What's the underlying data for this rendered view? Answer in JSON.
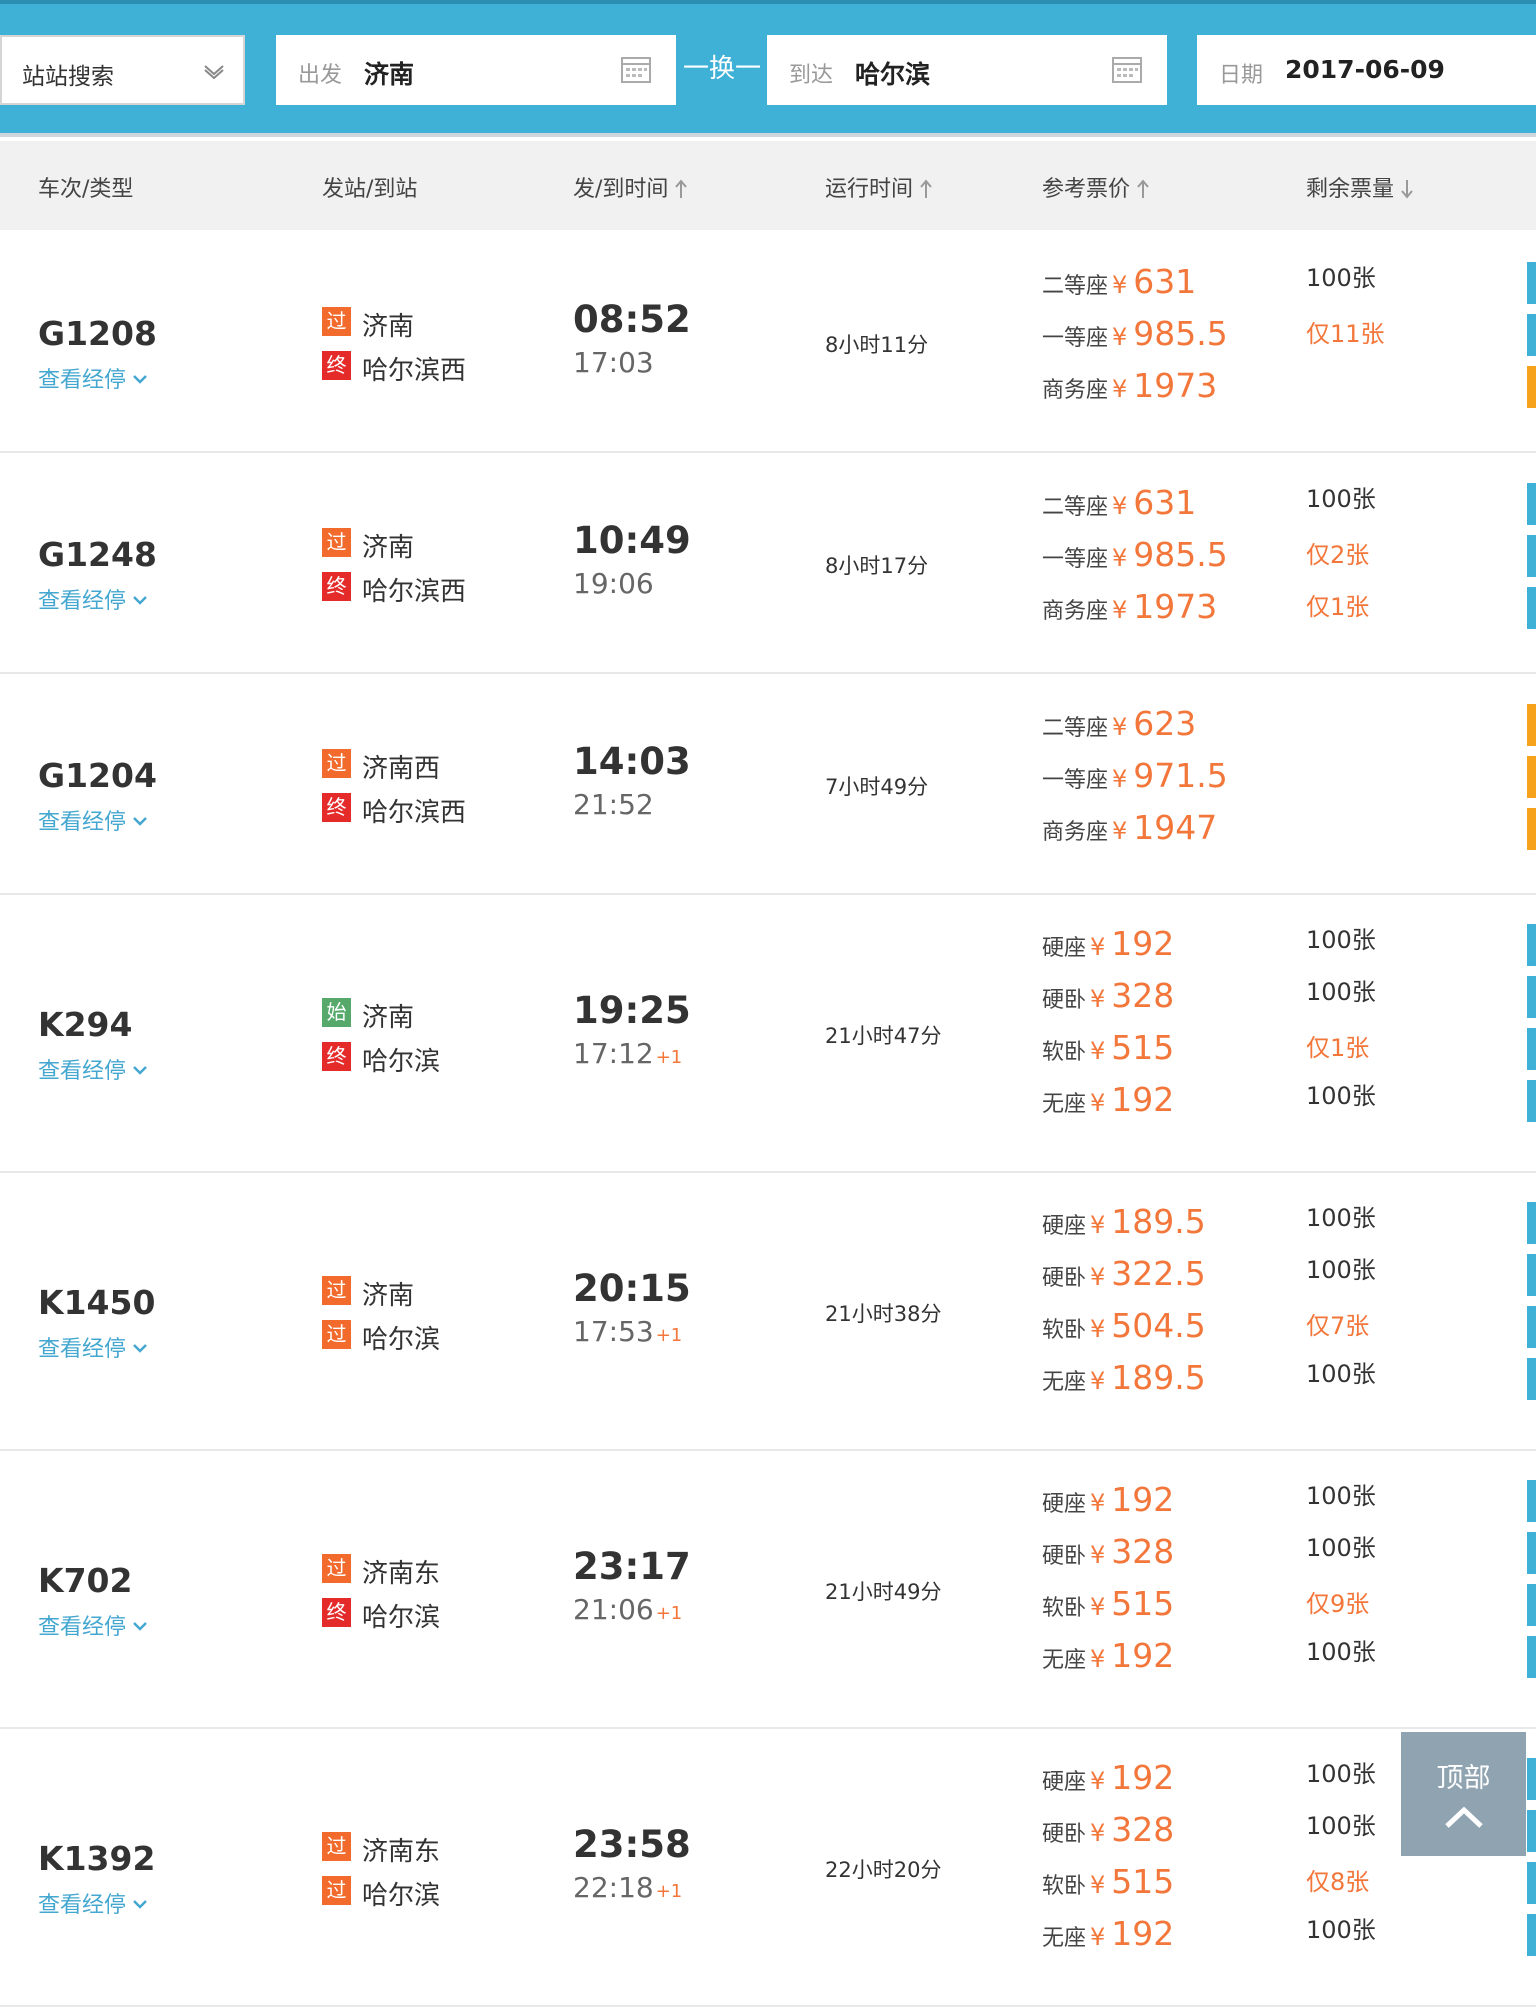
{
  "search": {
    "select_label": "站站搜索",
    "from_label": "出发",
    "from_value": "济南",
    "swap_label": "一换一",
    "to_label": "到达",
    "to_value": "哈尔滨",
    "date_label": "日期",
    "date_value": "2017-06-09"
  },
  "table_header": {
    "train": "车次/类型",
    "station": "发站/到站",
    "time": "发/到时间",
    "duration": "运行时间",
    "price": "参考票价",
    "remaining": "剩余票量"
  },
  "rows": [
    {
      "train_no": "G1208",
      "stops_link": "查看经停",
      "from_badge": "过",
      "from_station": "济南",
      "to_badge": "终",
      "to_station": "哈尔滨西",
      "dep": "08:52",
      "arr": "17:03",
      "arr_plus": "",
      "duration": "8小时11分",
      "seats": [
        {
          "seat": "二等座",
          "yen": "¥",
          "price": "631",
          "left": "100张"
        },
        {
          "seat": "一等座",
          "yen": "¥",
          "price": "985.5",
          "left": "仅11张"
        },
        {
          "seat": "商务座",
          "yen": "¥",
          "price": "1973",
          "left": ""
        }
      ]
    },
    {
      "train_no": "G1248",
      "stops_link": "查看经停",
      "from_badge": "过",
      "from_station": "济南",
      "to_badge": "终",
      "to_station": "哈尔滨西",
      "dep": "10:49",
      "arr": "19:06",
      "arr_plus": "",
      "duration": "8小时17分",
      "seats": [
        {
          "seat": "二等座",
          "yen": "¥",
          "price": "631",
          "left": "100张"
        },
        {
          "seat": "一等座",
          "yen": "¥",
          "price": "985.5",
          "left": "仅2张"
        },
        {
          "seat": "商务座",
          "yen": "¥",
          "price": "1973",
          "left": "仅1张"
        }
      ]
    },
    {
      "train_no": "G1204",
      "stops_link": "查看经停",
      "from_badge": "过",
      "from_station": "济南西",
      "to_badge": "终",
      "to_station": "哈尔滨西",
      "dep": "14:03",
      "arr": "21:52",
      "arr_plus": "",
      "duration": "7小时49分",
      "seats": [
        {
          "seat": "二等座",
          "yen": "¥",
          "price": "623",
          "left": ""
        },
        {
          "seat": "一等座",
          "yen": "¥",
          "price": "971.5",
          "left": ""
        },
        {
          "seat": "商务座",
          "yen": "¥",
          "price": "1947",
          "left": ""
        }
      ]
    },
    {
      "train_no": "K294",
      "stops_link": "查看经停",
      "from_badge": "始",
      "from_station": "济南",
      "to_badge": "终",
      "to_station": "哈尔滨",
      "dep": "19:25",
      "arr": "17:12",
      "arr_plus": "+1",
      "duration": "21小时47分",
      "seats": [
        {
          "seat": "硬座",
          "yen": "¥",
          "price": "192",
          "left": "100张"
        },
        {
          "seat": "硬卧",
          "yen": "¥",
          "price": "328",
          "left": "100张"
        },
        {
          "seat": "软卧",
          "yen": "¥",
          "price": "515",
          "left": "仅1张"
        },
        {
          "seat": "无座",
          "yen": "¥",
          "price": "192",
          "left": "100张"
        }
      ]
    },
    {
      "train_no": "K1450",
      "stops_link": "查看经停",
      "from_badge": "过",
      "from_station": "济南",
      "to_badge": "过",
      "to_station": "哈尔滨",
      "dep": "20:15",
      "arr": "17:53",
      "arr_plus": "+1",
      "duration": "21小时38分",
      "seats": [
        {
          "seat": "硬座",
          "yen": "¥",
          "price": "189.5",
          "left": "100张"
        },
        {
          "seat": "硬卧",
          "yen": "¥",
          "price": "322.5",
          "left": "100张"
        },
        {
          "seat": "软卧",
          "yen": "¥",
          "price": "504.5",
          "left": "仅7张"
        },
        {
          "seat": "无座",
          "yen": "¥",
          "price": "189.5",
          "left": "100张"
        }
      ]
    },
    {
      "train_no": "K702",
      "stops_link": "查看经停",
      "from_badge": "过",
      "from_station": "济南东",
      "to_badge": "终",
      "to_station": "哈尔滨",
      "dep": "23:17",
      "arr": "21:06",
      "arr_plus": "+1",
      "duration": "21小时49分",
      "seats": [
        {
          "seat": "硬座",
          "yen": "¥",
          "price": "192",
          "left": "100张"
        },
        {
          "seat": "硬卧",
          "yen": "¥",
          "price": "328",
          "left": "100张"
        },
        {
          "seat": "软卧",
          "yen": "¥",
          "price": "515",
          "left": "仅9张"
        },
        {
          "seat": "无座",
          "yen": "¥",
          "price": "192",
          "left": "100张"
        }
      ]
    },
    {
      "train_no": "K1392",
      "stops_link": "查看经停",
      "from_badge": "过",
      "from_station": "济南东",
      "to_badge": "过",
      "to_station": "哈尔滨",
      "dep": "23:58",
      "arr": "22:18",
      "arr_plus": "+1",
      "duration": "22小时20分",
      "seats": [
        {
          "seat": "硬座",
          "yen": "¥",
          "price": "192",
          "left": "100张"
        },
        {
          "seat": "硬卧",
          "yen": "¥",
          "price": "328",
          "left": "100张"
        },
        {
          "seat": "软卧",
          "yen": "¥",
          "price": "515",
          "left": "仅8张"
        },
        {
          "seat": "无座",
          "yen": "¥",
          "price": "192",
          "left": "100张"
        }
      ]
    }
  ],
  "top_button": {
    "label": "顶部",
    "icon": "chevron-up-icon"
  },
  "colors": {
    "accent": "#3fb0d6",
    "price": "#f3763a",
    "pass_badge": "#f26a2c",
    "end_badge": "#e52a2a",
    "start_badge": "#56a96b",
    "side_orange": "#f7a21c"
  }
}
